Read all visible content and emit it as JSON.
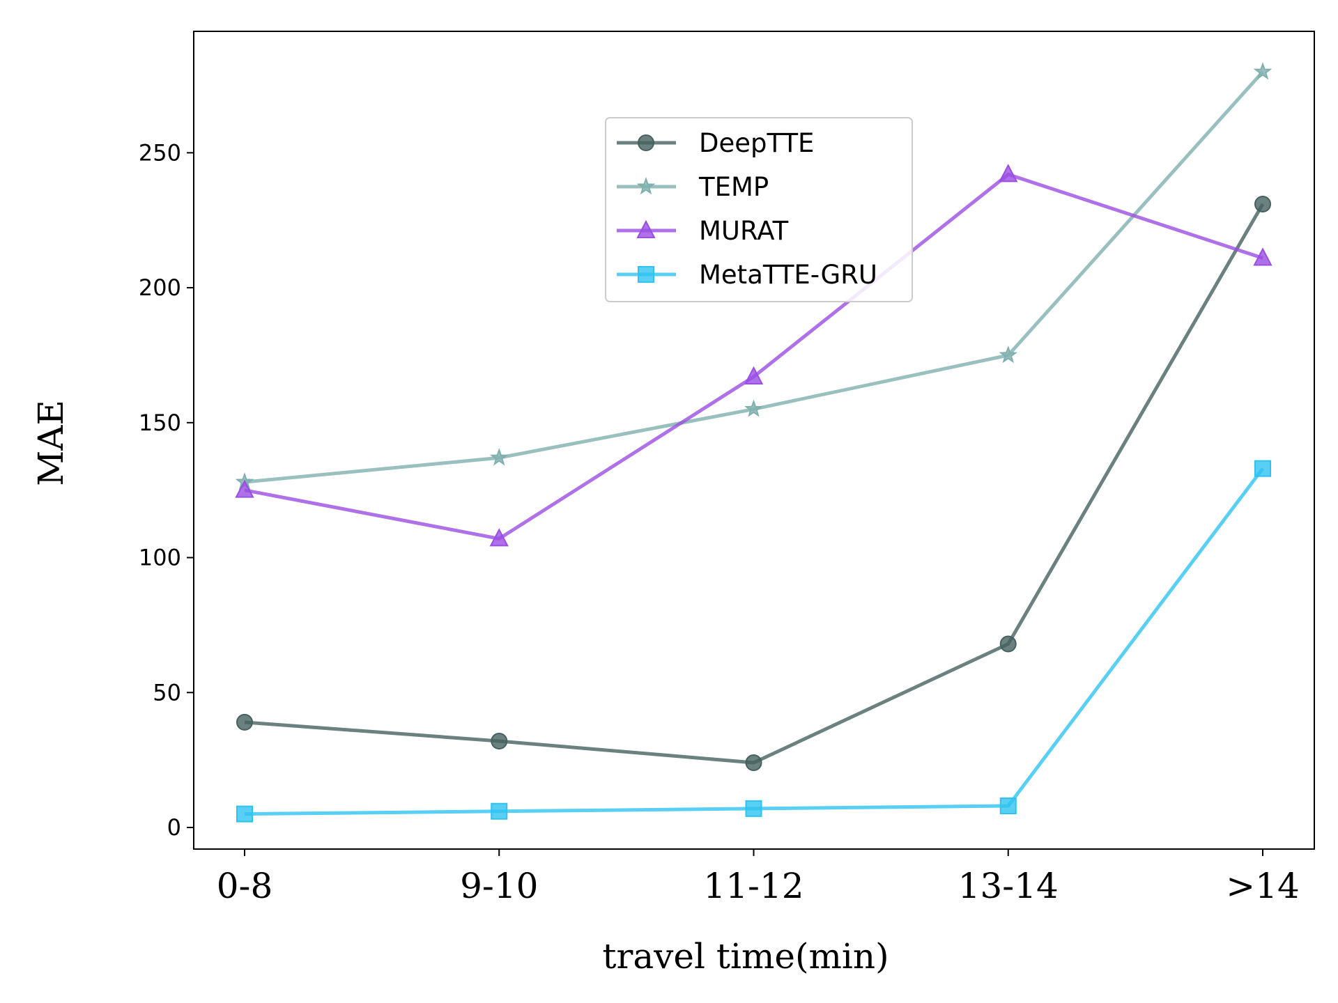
{
  "chart_data": {
    "type": "line",
    "title": "",
    "xlabel": "travel time(min)",
    "ylabel": "MAE",
    "categories": [
      "0-8",
      "9-10",
      "11-12",
      "13-14",
      ">14"
    ],
    "ylim": [
      -8,
      295
    ],
    "yticks": [
      0,
      50,
      100,
      150,
      200,
      250
    ],
    "grid": false,
    "legend_position": "upper-center",
    "series": [
      {
        "name": "DeepTTE",
        "marker": "circle",
        "color": "#45615f",
        "values": [
          39,
          32,
          24,
          68,
          231
        ]
      },
      {
        "name": "TEMP",
        "marker": "star",
        "color": "#7fb0ae",
        "values": [
          128,
          137,
          155,
          175,
          280
        ]
      },
      {
        "name": "MURAT",
        "marker": "triangle",
        "color": "#9a4ee2",
        "values": [
          125,
          107,
          167,
          242,
          211
        ]
      },
      {
        "name": "MetaTTE-GRU",
        "marker": "square",
        "color": "#2ec3f0",
        "values": [
          5,
          6,
          7,
          8,
          133
        ]
      }
    ]
  }
}
